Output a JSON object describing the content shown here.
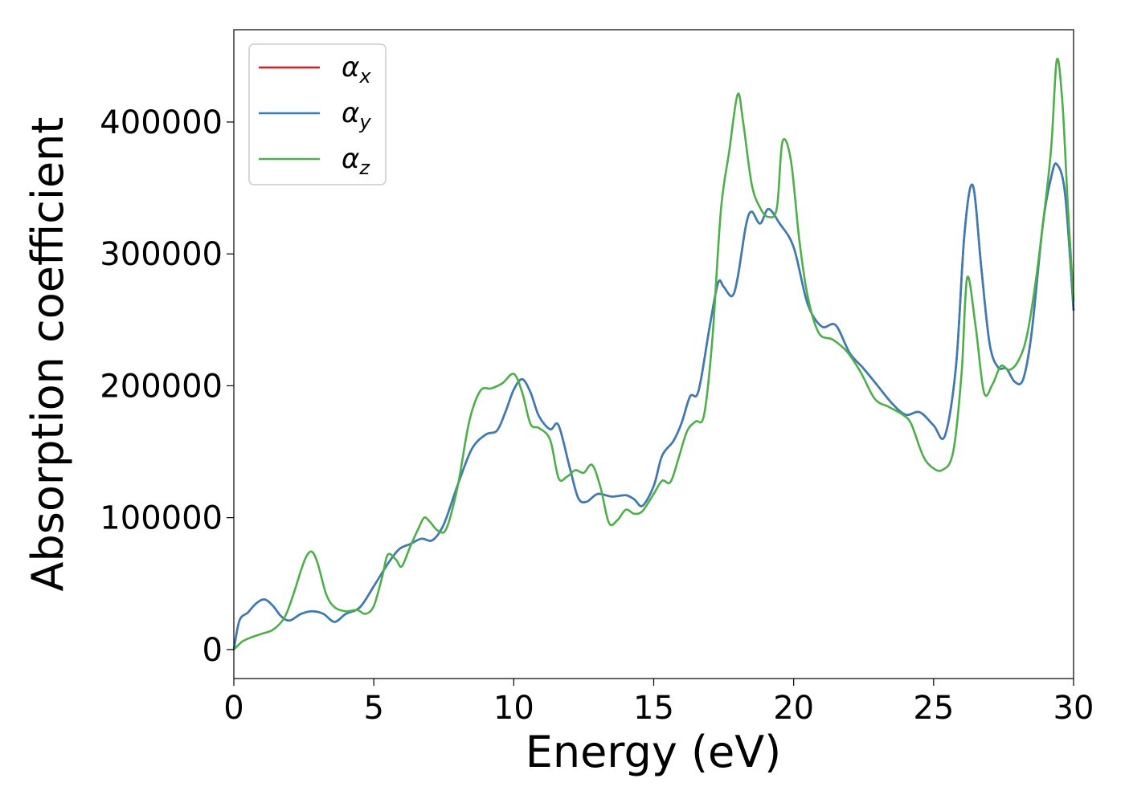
{
  "chart_data": {
    "type": "line",
    "xlabel": "Energy (eV)",
    "ylabel": "Absorption coefficient",
    "xlim": [
      0,
      30
    ],
    "ylim": [
      -22000,
      470000
    ],
    "xticks": [
      0,
      5,
      10,
      15,
      20,
      25,
      30
    ],
    "yticks": [
      0,
      100000,
      200000,
      300000,
      400000
    ],
    "grid": false,
    "legend_position": "top-left",
    "series": [
      {
        "name": "αx",
        "symbol": "α",
        "subscript": "x",
        "color": "#e41a1c",
        "x": [
          0,
          0.2,
          0.5,
          0.8,
          1.1,
          1.4,
          1.7,
          2.0,
          2.4,
          2.8,
          3.2,
          3.6,
          4.0,
          4.5,
          5.0,
          5.5,
          5.9,
          6.3,
          6.7,
          7.1,
          7.5,
          8.0,
          8.5,
          9.0,
          9.4,
          9.7,
          10.0,
          10.3,
          10.6,
          10.9,
          11.3,
          11.6,
          12.0,
          12.3,
          12.6,
          13.0,
          13.5,
          14.0,
          14.3,
          14.6,
          15.0,
          15.3,
          15.7,
          16.0,
          16.3,
          16.6,
          17.0,
          17.3,
          17.5,
          17.8,
          18.0,
          18.3,
          18.5,
          18.8,
          19.1,
          19.5,
          20.0,
          20.5,
          21.0,
          21.5,
          22.0,
          22.5,
          23.0,
          23.5,
          24.0,
          24.5,
          25.0,
          25.4,
          25.8,
          26.1,
          26.4,
          26.7,
          27.0,
          27.3,
          27.6,
          27.9,
          28.2,
          28.5,
          28.9,
          29.2,
          29.4,
          29.7,
          30.0
        ],
        "y": [
          0,
          22000,
          28000,
          35000,
          38000,
          33000,
          25000,
          22000,
          27000,
          29000,
          27000,
          21000,
          27000,
          32000,
          48000,
          65000,
          76000,
          80000,
          84000,
          83000,
          95000,
          125000,
          152000,
          163000,
          166000,
          180000,
          197000,
          205000,
          195000,
          177000,
          167000,
          170000,
          138000,
          115000,
          112000,
          118000,
          116000,
          117000,
          114000,
          109000,
          124000,
          147000,
          158000,
          172000,
          192000,
          196000,
          245000,
          278000,
          275000,
          268000,
          282000,
          322000,
          332000,
          323000,
          334000,
          323000,
          305000,
          262000,
          245000,
          246000,
          225000,
          213000,
          200000,
          187000,
          178000,
          180000,
          170000,
          162000,
          215000,
          315000,
          352000,
          290000,
          232000,
          214000,
          213000,
          203000,
          205000,
          240000,
          322000,
          358000,
          368000,
          345000,
          257000
        ]
      },
      {
        "name": "αy",
        "symbol": "α",
        "subscript": "y",
        "color": "#377eb8",
        "x": [
          0,
          0.2,
          0.5,
          0.8,
          1.1,
          1.4,
          1.7,
          2.0,
          2.4,
          2.8,
          3.2,
          3.6,
          4.0,
          4.5,
          5.0,
          5.5,
          5.9,
          6.3,
          6.7,
          7.1,
          7.5,
          8.0,
          8.5,
          9.0,
          9.4,
          9.7,
          10.0,
          10.3,
          10.6,
          10.9,
          11.3,
          11.6,
          12.0,
          12.3,
          12.6,
          13.0,
          13.5,
          14.0,
          14.3,
          14.6,
          15.0,
          15.3,
          15.7,
          16.0,
          16.3,
          16.6,
          17.0,
          17.3,
          17.5,
          17.8,
          18.0,
          18.3,
          18.5,
          18.8,
          19.1,
          19.5,
          20.0,
          20.5,
          21.0,
          21.5,
          22.0,
          22.5,
          23.0,
          23.5,
          24.0,
          24.5,
          25.0,
          25.4,
          25.8,
          26.1,
          26.4,
          26.7,
          27.0,
          27.3,
          27.6,
          27.9,
          28.2,
          28.5,
          28.9,
          29.2,
          29.4,
          29.7,
          30.0
        ],
        "y": [
          0,
          22000,
          28000,
          35000,
          38000,
          33000,
          25000,
          22000,
          27000,
          29000,
          27000,
          21000,
          27000,
          32000,
          48000,
          65000,
          76000,
          80000,
          84000,
          83000,
          95000,
          125000,
          152000,
          163000,
          166000,
          180000,
          197000,
          205000,
          195000,
          177000,
          167000,
          170000,
          138000,
          115000,
          112000,
          118000,
          116000,
          117000,
          114000,
          109000,
          124000,
          147000,
          158000,
          172000,
          192000,
          196000,
          245000,
          278000,
          275000,
          268000,
          282000,
          322000,
          332000,
          323000,
          334000,
          323000,
          305000,
          262000,
          245000,
          246000,
          225000,
          213000,
          200000,
          187000,
          178000,
          180000,
          170000,
          162000,
          215000,
          315000,
          352000,
          290000,
          232000,
          214000,
          213000,
          203000,
          205000,
          240000,
          322000,
          358000,
          368000,
          345000,
          257000
        ]
      },
      {
        "name": "αz",
        "symbol": "α",
        "subscript": "z",
        "color": "#4daf4a",
        "x": [
          0,
          0.3,
          0.6,
          1.0,
          1.4,
          1.8,
          2.1,
          2.4,
          2.6,
          2.8,
          3.0,
          3.3,
          3.6,
          4.0,
          4.4,
          4.7,
          5.0,
          5.3,
          5.5,
          5.8,
          6.0,
          6.3,
          6.6,
          6.8,
          7.0,
          7.3,
          7.6,
          8.0,
          8.4,
          8.8,
          9.2,
          9.6,
          10.0,
          10.3,
          10.6,
          10.9,
          11.3,
          11.6,
          11.9,
          12.2,
          12.5,
          12.8,
          13.1,
          13.4,
          13.7,
          14.0,
          14.3,
          14.6,
          15.0,
          15.3,
          15.6,
          15.9,
          16.2,
          16.5,
          16.8,
          17.1,
          17.4,
          17.7,
          18.0,
          18.2,
          18.5,
          18.8,
          19.1,
          19.4,
          19.6,
          19.9,
          20.2,
          20.5,
          20.9,
          21.4,
          21.9,
          22.4,
          22.9,
          23.4,
          23.9,
          24.2,
          24.6,
          24.9,
          25.3,
          25.7,
          26.0,
          26.2,
          26.5,
          26.8,
          27.1,
          27.4,
          27.7,
          28.0,
          28.3,
          28.6,
          28.9,
          29.2,
          29.4,
          29.6,
          29.8,
          30.0
        ],
        "y": [
          0,
          6000,
          9000,
          12000,
          15000,
          24000,
          40000,
          60000,
          71000,
          74000,
          65000,
          42000,
          32000,
          29000,
          30000,
          27000,
          33000,
          55000,
          72000,
          68000,
          63000,
          78000,
          92000,
          100000,
          97000,
          90000,
          92000,
          124000,
          172000,
          196000,
          198000,
          202000,
          209000,
          195000,
          171000,
          168000,
          159000,
          130000,
          131000,
          136000,
          134000,
          140000,
          123000,
          96000,
          98000,
          106000,
          103000,
          105000,
          118000,
          128000,
          127000,
          146000,
          166000,
          173000,
          178000,
          237000,
          333000,
          378000,
          421000,
          399000,
          353000,
          335000,
          328000,
          335000,
          385000,
          371000,
          311000,
          268000,
          240000,
          235000,
          226000,
          210000,
          190000,
          184000,
          178000,
          171000,
          148000,
          139000,
          136000,
          150000,
          210000,
          282000,
          245000,
          195000,
          201000,
          215000,
          212000,
          218000,
          235000,
          272000,
          322000,
          380000,
          447000,
          415000,
          335000,
          264000
        ]
      }
    ]
  }
}
